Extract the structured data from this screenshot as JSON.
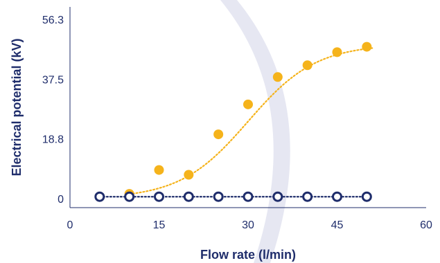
{
  "chart_data": {
    "type": "scatter",
    "title": "",
    "xlabel": "Flow rate (l/min)",
    "ylabel": "Electrical potential (kV)",
    "xlim": [
      0,
      60
    ],
    "ylim": [
      0,
      56.3
    ],
    "xticks": [
      0,
      15,
      30,
      45,
      60
    ],
    "yticks": [
      0,
      18.8,
      37.5,
      56.3
    ],
    "xtick_labels": [
      "0",
      "15",
      "30",
      "45",
      "60"
    ],
    "ytick_labels": [
      "0",
      "18.8",
      "37.5",
      "56.3"
    ],
    "grid": false,
    "legend": "none",
    "series": [
      {
        "color": "#f5b31b",
        "marker": "filled-circle",
        "trend_line": "dotted-sigmoid",
        "x": [
          10,
          15,
          20,
          25,
          30,
          35,
          40,
          45,
          50
        ],
        "y": [
          1.5,
          9.0,
          7.5,
          20.2,
          29.6,
          38.2,
          41.9,
          46.0,
          47.7
        ]
      },
      {
        "color": "#1f2d6b",
        "marker": "hollow-circle",
        "trend_line": "dotted-straight",
        "x": [
          5,
          10,
          15,
          20,
          25,
          30,
          35,
          40,
          45,
          50
        ],
        "y": [
          0.6,
          0.6,
          0.6,
          0.6,
          0.6,
          0.6,
          0.6,
          0.6,
          0.6,
          0.6
        ]
      }
    ],
    "colors": {
      "axis": "#1f2d6b",
      "background_band": "#e6e7f2"
    }
  }
}
